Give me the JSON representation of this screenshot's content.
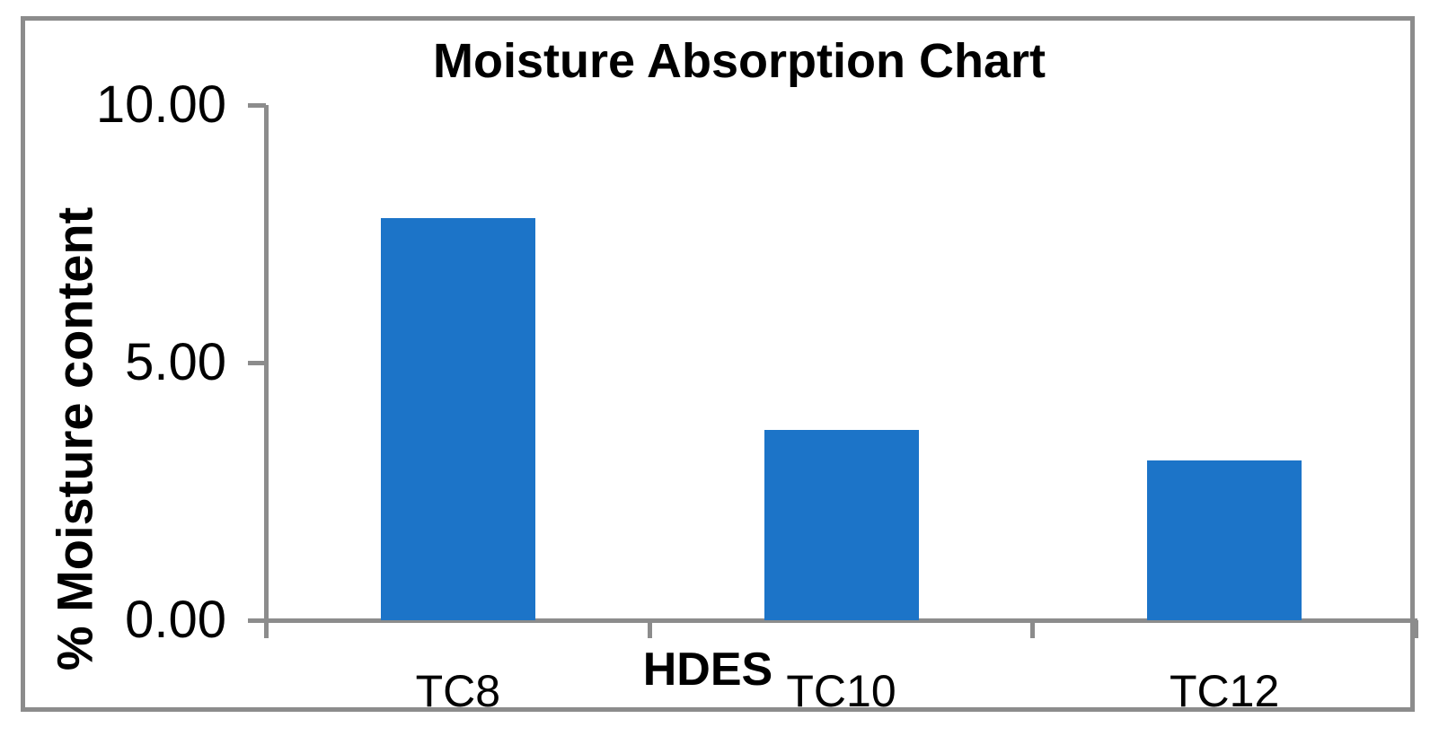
{
  "chart_data": {
    "type": "bar",
    "title": "Moisture Absorption Chart",
    "xlabel": "HDES",
    "ylabel": "% Moisture content",
    "categories": [
      "TC8",
      "TC10",
      "TC12"
    ],
    "values": [
      7.8,
      3.7,
      3.1
    ],
    "series_name": "% Moisture content",
    "ylim": [
      0,
      10
    ],
    "yticks": [
      {
        "label": "10.00",
        "value": 10
      },
      {
        "label": "5.00",
        "value": 5
      },
      {
        "label": "0.00",
        "value": 0
      }
    ],
    "grid": false,
    "legend_position": "none",
    "bar_color": "#1C74C8",
    "axis_color": "#8C8C8C",
    "frame_color": "#8C8C8C",
    "text_color": "#000000",
    "background": "#FFFFFF"
  }
}
